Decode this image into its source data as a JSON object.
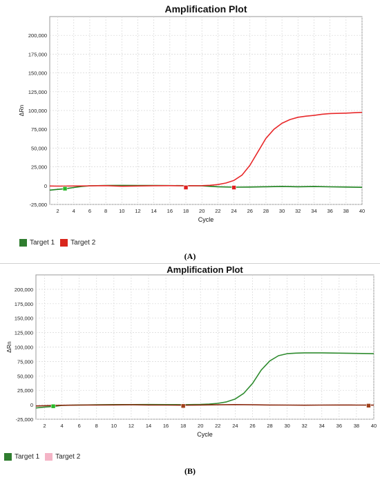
{
  "chart_data": [
    {
      "type": "line",
      "panel": "(A)",
      "title": "Amplification Plot",
      "xlabel": "Cycle",
      "ylabel": "ΔRn",
      "xlim": [
        1,
        40
      ],
      "ylim": [
        -25000,
        225000
      ],
      "xticks": [
        2,
        4,
        6,
        8,
        10,
        12,
        14,
        16,
        18,
        20,
        22,
        24,
        26,
        28,
        30,
        32,
        34,
        36,
        38,
        40
      ],
      "yticks": [
        -25000,
        0,
        25000,
        50000,
        75000,
        100000,
        125000,
        150000,
        175000,
        200000
      ],
      "ytick_labels": [
        "-25,000",
        "0",
        "25,000",
        "50,000",
        "75,000",
        "100,000",
        "125,000",
        "150,000",
        "175,000",
        "200,000"
      ],
      "grid": true,
      "legend_position": "bottom-left",
      "series": [
        {
          "name": "Target 1",
          "color": "#1a7f1a",
          "x": [
            1,
            2,
            3,
            4,
            5,
            6,
            8,
            10,
            12,
            14,
            16,
            18,
            20,
            22,
            24,
            26,
            28,
            30,
            32,
            34,
            36,
            38,
            40
          ],
          "y": [
            -6000,
            -5000,
            -4000,
            -2500,
            -1000,
            -200,
            300,
            400,
            300,
            200,
            100,
            0,
            -300,
            -1500,
            -2000,
            -1800,
            -1500,
            -1000,
            -1500,
            -1200,
            -1600,
            -1800,
            -2200
          ]
        },
        {
          "name": "Target 2",
          "color": "#e8282a",
          "x": [
            1,
            2,
            4,
            6,
            8,
            10,
            12,
            14,
            16,
            18,
            20,
            21,
            22,
            23,
            24,
            25,
            26,
            27,
            28,
            29,
            30,
            31,
            32,
            33,
            34,
            35,
            36,
            38,
            40
          ],
          "y": [
            -500,
            -600,
            -500,
            -300,
            0,
            -800,
            -500,
            -100,
            0,
            -300,
            0,
            500,
            1500,
            3500,
            7000,
            14000,
            27000,
            45000,
            63000,
            75000,
            83000,
            88000,
            91000,
            92500,
            93500,
            95000,
            96000,
            96500,
            97500
          ]
        }
      ]
    },
    {
      "type": "line",
      "panel": "(B)",
      "title": "Amplification Plot",
      "xlabel": "Cycle",
      "ylabel": "ΔRn",
      "xlim": [
        1,
        40
      ],
      "ylim": [
        -25000,
        225000
      ],
      "xticks": [
        2,
        4,
        6,
        8,
        10,
        12,
        14,
        16,
        18,
        20,
        22,
        24,
        26,
        28,
        30,
        32,
        34,
        36,
        38,
        40
      ],
      "yticks": [
        -25000,
        0,
        25000,
        50000,
        75000,
        100000,
        125000,
        150000,
        175000,
        200000
      ],
      "ytick_labels": [
        "-25,000",
        "0",
        "25,000",
        "50,000",
        "75,000",
        "100,000",
        "125,000",
        "150,000",
        "175,000",
        "200,000"
      ],
      "grid": true,
      "legend_position": "bottom-left",
      "series": [
        {
          "name": "Target 1",
          "color": "#2e8b2e",
          "x": [
            1,
            2,
            3,
            4,
            6,
            8,
            10,
            12,
            14,
            16,
            18,
            20,
            21,
            22,
            23,
            24,
            25,
            26,
            27,
            28,
            29,
            30,
            31,
            32,
            34,
            36,
            38,
            40
          ],
          "y": [
            -5500,
            -4000,
            -3000,
            -1000,
            -300,
            0,
            300,
            400,
            500,
            300,
            200,
            600,
            1200,
            2500,
            5000,
            10000,
            20000,
            37000,
            60000,
            76000,
            85000,
            88500,
            89500,
            90000,
            90000,
            89500,
            89000,
            88500
          ]
        },
        {
          "name": "Target 2",
          "color": "#8b2a10",
          "x": [
            1,
            2,
            4,
            6,
            8,
            10,
            12,
            14,
            16,
            18,
            20,
            22,
            24,
            26,
            28,
            30,
            32,
            34,
            36,
            38,
            40
          ],
          "y": [
            -2000,
            -1500,
            -800,
            -500,
            -300,
            -200,
            0,
            -300,
            -500,
            -700,
            -300,
            0,
            300,
            0,
            -300,
            -500,
            -700,
            -500,
            -300,
            -500,
            -600
          ]
        }
      ]
    }
  ],
  "captions": {
    "a": "(A)",
    "b": "(B)"
  },
  "legends": {
    "a": [
      {
        "name": "Target 1",
        "color": "#2f7d2f"
      },
      {
        "name": "Target 2",
        "color": "#d9261c"
      }
    ],
    "b": [
      {
        "name": "Target 1",
        "color": "#2f7d2f"
      },
      {
        "name": "Target 2",
        "color": "#f4b4c6"
      }
    ]
  }
}
